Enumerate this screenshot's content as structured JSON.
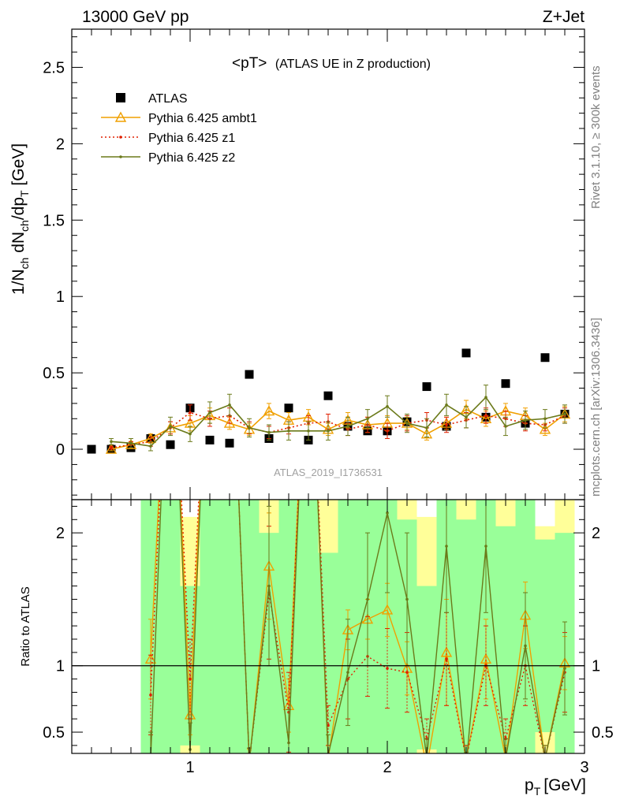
{
  "header": {
    "left_label": "13000 GeV pp",
    "right_label": "Z+Jet"
  },
  "side_labels": {
    "rivet": "Rivet 3.1.10, ≥ 300k events",
    "mcplots": "mcplots.cern.ch [arXiv:1306.3436]"
  },
  "watermark": "ATLAS_2019_I1736531",
  "chart_data": [
    {
      "type": "scatter",
      "title_main": "<pT>",
      "title_sub": "(ATLAS UE in Z production)",
      "xlabel_main": "p",
      "xlabel_sub": "T",
      "xlabel_unit": "[GeV]",
      "ylabel": "1/N_ch dN_ch/dp_T [GeV]",
      "xlim": [
        0.4,
        3.0
      ],
      "ylim": [
        -0.33,
        2.75
      ],
      "yticks": [
        0,
        0.5,
        1,
        1.5,
        2,
        2.5
      ],
      "xticks": [
        1,
        2,
        3
      ],
      "legend_position": "top-left",
      "series": [
        {
          "name": "ATLAS",
          "color": "#000000",
          "marker": "square",
          "x": [
            0.5,
            0.6,
            0.7,
            0.8,
            0.9,
            1.0,
            1.1,
            1.2,
            1.3,
            1.4,
            1.5,
            1.6,
            1.7,
            1.8,
            1.9,
            2.0,
            2.1,
            2.2,
            2.3,
            2.4,
            2.5,
            2.6,
            2.7,
            2.8,
            2.9
          ],
          "y": [
            0.0,
            0.0,
            0.01,
            0.07,
            0.03,
            0.27,
            0.06,
            0.04,
            0.49,
            0.07,
            0.27,
            0.06,
            0.35,
            0.15,
            0.12,
            0.12,
            0.18,
            0.41,
            0.15,
            0.63,
            0.21,
            0.43,
            0.17,
            0.6,
            0.23
          ],
          "err": [
            0,
            0,
            0,
            0,
            0,
            0,
            0,
            0,
            0,
            0,
            0,
            0,
            0,
            0,
            0,
            0,
            0,
            0,
            0,
            0,
            0,
            0,
            0,
            0,
            0
          ]
        },
        {
          "name": "Pythia 6.425 ambt1",
          "color": "#f0a000",
          "marker": "triangle",
          "line": "solid",
          "x": [
            0.6,
            0.7,
            0.8,
            0.9,
            1.0,
            1.1,
            1.2,
            1.3,
            1.4,
            1.5,
            1.6,
            1.7,
            1.8,
            1.9,
            2.0,
            2.1,
            2.2,
            2.3,
            2.4,
            2.5,
            2.6,
            2.7,
            2.8,
            2.9
          ],
          "y": [
            0.0,
            0.03,
            0.07,
            0.14,
            0.17,
            0.22,
            0.17,
            0.13,
            0.25,
            0.19,
            0.21,
            0.13,
            0.19,
            0.16,
            0.17,
            0.17,
            0.1,
            0.17,
            0.26,
            0.2,
            0.25,
            0.22,
            0.13,
            0.23
          ],
          "err": [
            0.01,
            0.02,
            0.03,
            0.04,
            0.05,
            0.05,
            0.04,
            0.04,
            0.05,
            0.05,
            0.05,
            0.04,
            0.05,
            0.05,
            0.05,
            0.04,
            0.04,
            0.04,
            0.06,
            0.05,
            0.05,
            0.05,
            0.04,
            0.05
          ]
        },
        {
          "name": "Pythia 6.425 z1",
          "color": "#e02000",
          "marker": "dot",
          "line": "dotted",
          "x": [
            0.6,
            0.7,
            0.8,
            0.9,
            1.0,
            1.1,
            1.2,
            1.3,
            1.4,
            1.5,
            1.6,
            1.7,
            1.8,
            1.9,
            2.0,
            2.1,
            2.2,
            2.3,
            2.4,
            2.5,
            2.6,
            2.7,
            2.8,
            2.9
          ],
          "y": [
            0.01,
            0.03,
            0.05,
            0.14,
            0.24,
            0.2,
            0.22,
            0.14,
            0.11,
            0.14,
            0.17,
            0.18,
            0.13,
            0.16,
            0.12,
            0.17,
            0.19,
            0.16,
            0.19,
            0.22,
            0.2,
            0.17,
            0.16,
            0.22
          ],
          "err": [
            0.01,
            0.02,
            0.03,
            0.04,
            0.05,
            0.05,
            0.05,
            0.04,
            0.04,
            0.04,
            0.05,
            0.05,
            0.04,
            0.05,
            0.05,
            0.05,
            0.05,
            0.05,
            0.05,
            0.05,
            0.05,
            0.05,
            0.04,
            0.05
          ]
        },
        {
          "name": "Pythia 6.425 z2",
          "color": "#6b7a1a",
          "marker": "dot",
          "line": "solid",
          "x": [
            0.6,
            0.7,
            0.8,
            0.9,
            1.0,
            1.1,
            1.2,
            1.3,
            1.4,
            1.5,
            1.6,
            1.7,
            1.8,
            1.9,
            2.0,
            2.1,
            2.2,
            2.3,
            2.4,
            2.5,
            2.6,
            2.7,
            2.8,
            2.9
          ],
          "y": [
            0.05,
            0.04,
            0.02,
            0.15,
            0.1,
            0.24,
            0.29,
            0.14,
            0.11,
            0.12,
            0.12,
            0.12,
            0.15,
            0.2,
            0.28,
            0.17,
            0.14,
            0.29,
            0.21,
            0.34,
            0.15,
            0.19,
            0.2,
            0.23
          ],
          "err": [
            0.02,
            0.03,
            0.03,
            0.06,
            0.05,
            0.07,
            0.07,
            0.06,
            0.05,
            0.06,
            0.06,
            0.06,
            0.06,
            0.06,
            0.07,
            0.06,
            0.06,
            0.07,
            0.07,
            0.08,
            0.06,
            0.06,
            0.06,
            0.06
          ]
        }
      ]
    },
    {
      "type": "line",
      "ylabel": "Ratio to ATLAS",
      "xlim": [
        0.4,
        3.0
      ],
      "ylim": [
        0.34,
        2.25
      ],
      "yticks": [
        0.5,
        1,
        2
      ],
      "reference_line": 1,
      "band_colors": {
        "inner": "#99ff99",
        "outer": "#ffff99"
      },
      "bands": {
        "x": [
          0.8,
          0.9,
          1.0,
          1.1,
          1.2,
          1.3,
          1.4,
          1.5,
          1.6,
          1.7,
          1.8,
          1.9,
          2.0,
          2.1,
          2.2,
          2.3,
          2.4,
          2.5,
          2.6,
          2.7,
          2.8,
          2.9
        ],
        "inner_high": [
          2.25,
          2.25,
          1.6,
          2.25,
          2.25,
          2.25,
          2.0,
          2.25,
          2.25,
          1.85,
          2.25,
          2.25,
          2.25,
          2.1,
          1.6,
          2.25,
          2.1,
          2.25,
          2.05,
          2.25,
          1.95,
          2.0
        ],
        "outer_high": [
          2.25,
          2.25,
          2.25,
          2.25,
          2.25,
          2.25,
          2.25,
          2.25,
          2.25,
          2.25,
          2.25,
          2.25,
          2.25,
          2.25,
          2.25,
          2.25,
          2.25,
          2.25,
          2.25,
          2.25,
          2.25,
          2.25
        ],
        "white_gap_top": [
          0,
          0,
          2.12,
          0,
          0,
          0,
          0,
          0,
          0,
          0,
          0,
          0,
          0,
          0,
          2.12,
          0,
          0,
          0,
          0,
          0,
          2.05,
          0
        ],
        "inner_low": [
          0.34,
          0.34,
          0.4,
          0.34,
          0.34,
          0.34,
          0.34,
          0.34,
          0.34,
          0.34,
          0.34,
          0.34,
          0.34,
          0.34,
          0.37,
          0.34,
          0.34,
          0.34,
          0.34,
          0.34,
          0.5,
          0.34
        ],
        "outer_low": [
          0.34,
          0.34,
          0.34,
          0.34,
          0.34,
          0.34,
          0.34,
          0.34,
          0.34,
          0.34,
          0.34,
          0.34,
          0.34,
          0.34,
          0.34,
          0.34,
          0.34,
          0.34,
          0.34,
          0.34,
          0.34,
          0.34
        ]
      },
      "series": [
        {
          "name": "Pythia 6.425 ambt1",
          "color": "#f0a000",
          "x": [
            0.8,
            0.9,
            1.0,
            1.1,
            1.2,
            1.3,
            1.4,
            1.5,
            1.6,
            1.7,
            1.8,
            1.9,
            2.0,
            2.1,
            2.2,
            2.3,
            2.4,
            2.5,
            2.6,
            2.7,
            2.8,
            2.9
          ],
          "y": [
            1.05,
            4.0,
            0.63,
            4.0,
            4.0,
            0.27,
            1.75,
            0.7,
            4.0,
            0.3,
            1.27,
            1.35,
            1.42,
            0.98,
            0.24,
            1.1,
            0.3,
            1.05,
            0.3,
            1.38,
            0.3,
            1.02
          ],
          "err": [
            0.3,
            0.5,
            0.15,
            0.5,
            0.5,
            0.1,
            0.4,
            0.2,
            0.5,
            0.1,
            0.15,
            0.15,
            0.2,
            0.2,
            0.1,
            0.4,
            0.1,
            0.3,
            0.1,
            0.25,
            0.1,
            0.2
          ]
        },
        {
          "name": "Pythia 6.425 z1",
          "color": "#e02000",
          "x": [
            0.8,
            0.9,
            1.0,
            1.1,
            1.2,
            1.3,
            1.4,
            1.5,
            1.6,
            1.7,
            1.8,
            1.9,
            2.0,
            2.1,
            2.2,
            2.3,
            2.4,
            2.5,
            2.6,
            2.7,
            2.8,
            2.9
          ],
          "y": [
            0.78,
            4.0,
            0.9,
            4.0,
            4.0,
            0.28,
            1.55,
            0.65,
            4.0,
            0.55,
            0.9,
            1.07,
            0.98,
            0.95,
            0.45,
            1.05,
            0.3,
            1.0,
            0.45,
            1.0,
            0.3,
            0.95
          ],
          "err": [
            0.3,
            0.6,
            0.3,
            0.5,
            0.5,
            0.1,
            0.5,
            0.3,
            0.5,
            0.15,
            0.3,
            0.3,
            0.3,
            0.3,
            0.15,
            0.35,
            0.1,
            0.3,
            0.15,
            0.3,
            0.1,
            0.3
          ]
        },
        {
          "name": "Pythia 6.425 z2",
          "color": "#6b7a1a",
          "x": [
            0.8,
            0.9,
            1.0,
            1.1,
            1.2,
            1.3,
            1.4,
            1.5,
            1.6,
            1.7,
            1.8,
            1.9,
            2.0,
            2.1,
            2.2,
            2.3,
            2.4,
            2.5,
            2.6,
            2.7,
            2.8,
            2.9
          ],
          "y": [
            0.3,
            4.0,
            0.37,
            4.0,
            4.0,
            0.28,
            1.6,
            0.42,
            4.0,
            0.33,
            0.95,
            1.5,
            2.15,
            1.5,
            0.3,
            1.9,
            0.25,
            1.9,
            0.3,
            1.15,
            0.3,
            0.98
          ],
          "err": [
            0.2,
            0.6,
            0.2,
            0.6,
            0.6,
            0.1,
            0.6,
            0.25,
            0.6,
            0.15,
            0.4,
            0.5,
            0.6,
            0.5,
            0.15,
            0.5,
            0.1,
            0.5,
            0.15,
            0.4,
            0.1,
            0.35
          ]
        }
      ]
    }
  ]
}
